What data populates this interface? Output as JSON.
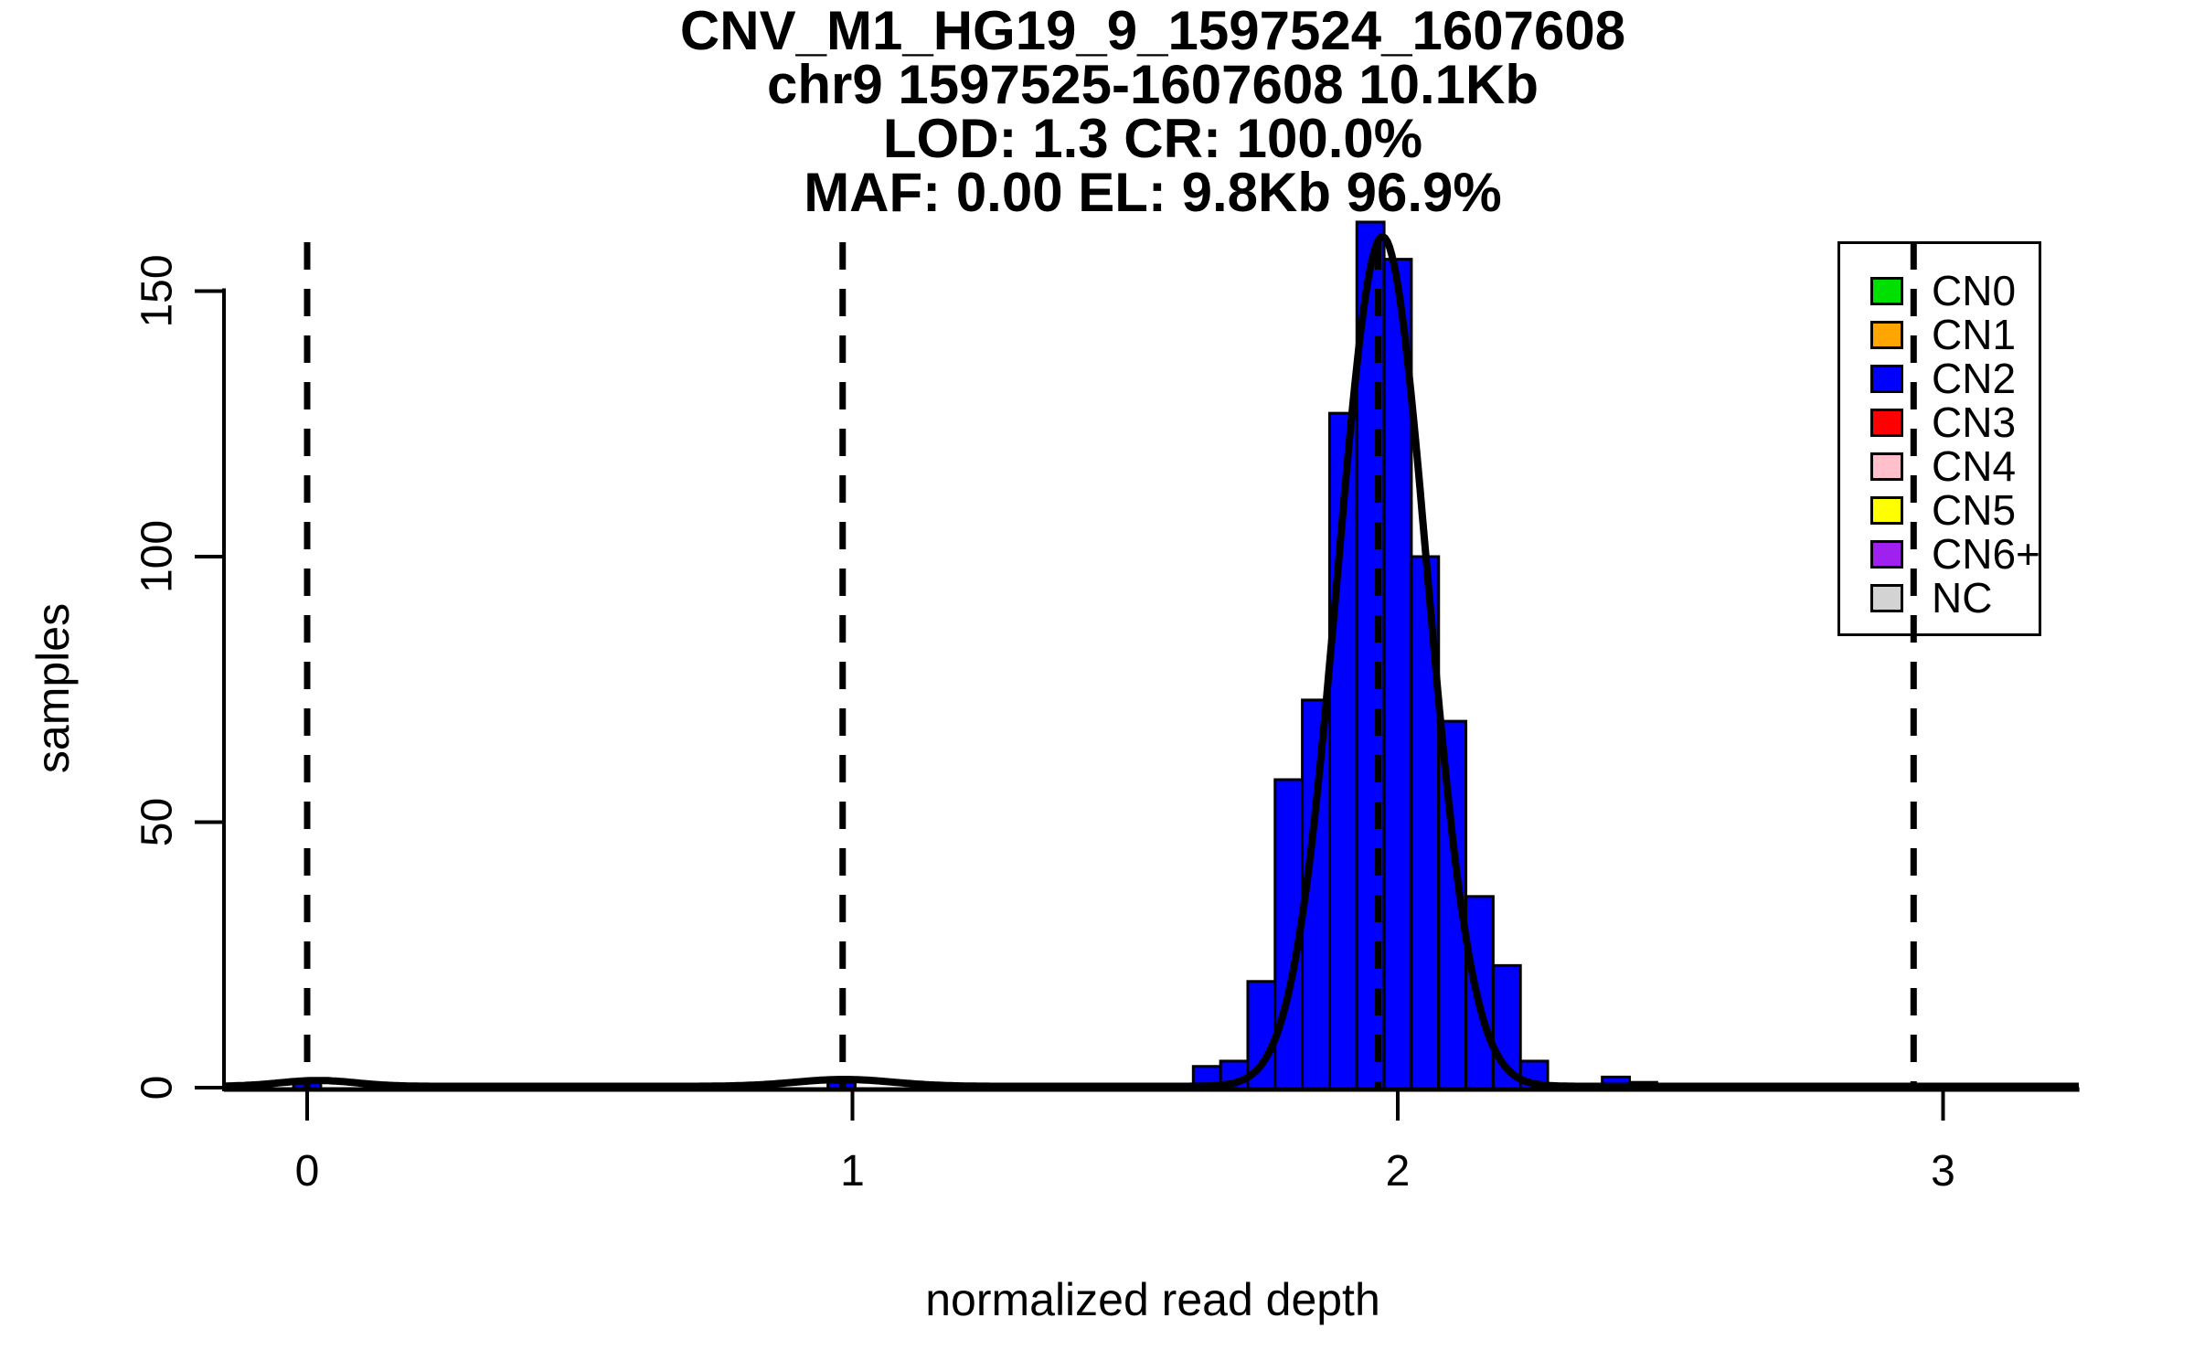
{
  "title": {
    "line1": "CNV_M1_HG19_9_1597524_1607608",
    "line2": "chr9 1597525-1607608 10.1Kb",
    "line3": "LOD: 1.3 CR: 100.0%",
    "line4": "MAF: 0.00 EL: 9.8Kb 96.9%"
  },
  "axes": {
    "xlabel": "normalized read depth",
    "ylabel": "samples"
  },
  "legend": {
    "items": [
      {
        "label": "CN0",
        "color": "#00E000"
      },
      {
        "label": "CN1",
        "color": "#FFA500"
      },
      {
        "label": "CN2",
        "color": "#0000FF"
      },
      {
        "label": "CN3",
        "color": "#FF0000"
      },
      {
        "label": "CN4",
        "color": "#FFC0CB"
      },
      {
        "label": "CN5",
        "color": "#FFFF00"
      },
      {
        "label": "CN6+",
        "color": "#A020F0"
      },
      {
        "label": "NC",
        "color": "#D3D3D3"
      }
    ]
  },
  "chart_data": {
    "type": "bar",
    "subtype": "histogram-with-fit-curve",
    "title": "CNV_M1_HG19_9_1597524_1607608 | chr9 1597525-1607608 10.1Kb | LOD: 1.3 CR: 100.0% | MAF: 0.00 EL: 9.8Kb 96.9%",
    "xlabel": "normalized read depth",
    "ylabel": "samples",
    "x_ticks": [
      "0",
      "1",
      "2",
      "3"
    ],
    "y_ticks": [
      "0",
      "50",
      "100",
      "150"
    ],
    "xlim": [
      -0.155,
      3.25
    ],
    "ylim": [
      0,
      165
    ],
    "grid": false,
    "legend_position": "top-right",
    "histogram": {
      "bin_start": 1.625,
      "bin_width": 0.05,
      "counts": [
        4,
        5,
        20,
        58,
        73,
        127,
        163,
        156,
        100,
        69,
        36,
        23,
        5,
        0,
        0,
        2,
        1
      ]
    },
    "extra_bars": [
      {
        "x_start": -0.025,
        "count": 1
      },
      {
        "x_start": 0.955,
        "count": 1
      }
    ],
    "bar_color": "#0000FF",
    "bar_border_color": "#000000",
    "dashed_lines_x": [
      0,
      0.982,
      1.964,
      2.946
    ],
    "fit_curve": {
      "color": "#000000",
      "range": [
        -0.155,
        3.25
      ],
      "components": [
        {
          "mean": 1.972,
          "sd": 0.082,
          "amp": 160
        },
        {
          "mean": 0.985,
          "sd": 0.09,
          "amp": 1.3
        },
        {
          "mean": 0.02,
          "sd": 0.07,
          "amp": 1.1
        }
      ]
    }
  }
}
